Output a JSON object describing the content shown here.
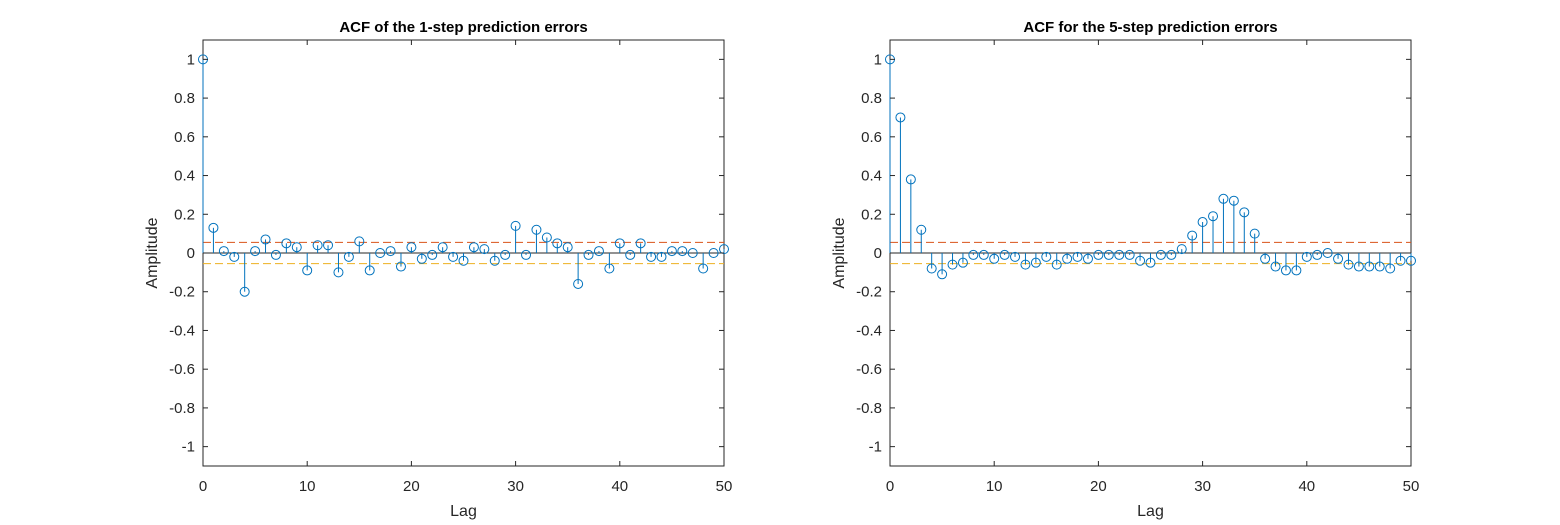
{
  "chart_data": [
    {
      "type": "stem",
      "title": "ACF of the 1-step prediction errors",
      "xlabel": "Lag",
      "ylabel": "Amplitude",
      "xlim": [
        0,
        50
      ],
      "ylim": [
        -1.1,
        1.1
      ],
      "xticks": [
        0,
        10,
        20,
        30,
        40,
        50
      ],
      "yticks": [
        -1,
        -0.8,
        -0.6,
        -0.4,
        -0.2,
        0,
        0.2,
        0.4,
        0.6,
        0.8,
        1
      ],
      "ytick_labels": [
        "-1",
        "-0.8",
        "-0.6",
        "-0.4",
        "-0.2",
        "0",
        "0.2",
        "0.4",
        "0.6",
        "0.8",
        "1"
      ],
      "confidence_bounds": [
        0.055,
        -0.055
      ],
      "grid": false,
      "x": [
        0,
        1,
        2,
        3,
        4,
        5,
        6,
        7,
        8,
        9,
        10,
        11,
        12,
        13,
        14,
        15,
        16,
        17,
        18,
        19,
        20,
        21,
        22,
        23,
        24,
        25,
        26,
        27,
        28,
        29,
        30,
        31,
        32,
        33,
        34,
        35,
        36,
        37,
        38,
        39,
        40,
        41,
        42,
        43,
        44,
        45,
        46,
        47,
        48,
        49,
        50
      ],
      "values": [
        1.0,
        0.13,
        0.01,
        -0.02,
        -0.2,
        0.01,
        0.07,
        -0.01,
        0.05,
        0.03,
        -0.09,
        0.04,
        0.04,
        -0.1,
        -0.02,
        0.06,
        -0.09,
        0.0,
        0.01,
        -0.07,
        0.03,
        -0.03,
        -0.01,
        0.03,
        -0.02,
        -0.04,
        0.03,
        0.02,
        -0.04,
        -0.01,
        0.14,
        -0.01,
        0.12,
        0.08,
        0.05,
        0.03,
        -0.16,
        -0.01,
        0.01,
        -0.08,
        0.05,
        -0.01,
        0.05,
        -0.02,
        -0.02,
        0.01,
        0.01,
        0.0,
        -0.08,
        0.0,
        0.02
      ]
    },
    {
      "type": "stem",
      "title": "ACF for the 5-step prediction errors",
      "xlabel": "Lag",
      "ylabel": "Amplitude",
      "xlim": [
        0,
        50
      ],
      "ylim": [
        -1.1,
        1.1
      ],
      "xticks": [
        0,
        10,
        20,
        30,
        40,
        50
      ],
      "yticks": [
        -1,
        -0.8,
        -0.6,
        -0.4,
        -0.2,
        0,
        0.2,
        0.4,
        0.6,
        0.8,
        1
      ],
      "ytick_labels": [
        "-1",
        "-0.8",
        "-0.6",
        "-0.4",
        "-0.2",
        "0",
        "0.2",
        "0.4",
        "0.6",
        "0.8",
        "1"
      ],
      "confidence_bounds": [
        0.055,
        -0.055
      ],
      "grid": false,
      "x": [
        0,
        1,
        2,
        3,
        4,
        5,
        6,
        7,
        8,
        9,
        10,
        11,
        12,
        13,
        14,
        15,
        16,
        17,
        18,
        19,
        20,
        21,
        22,
        23,
        24,
        25,
        26,
        27,
        28,
        29,
        30,
        31,
        32,
        33,
        34,
        35,
        36,
        37,
        38,
        39,
        40,
        41,
        42,
        43,
        44,
        45,
        46,
        47,
        48,
        49,
        50
      ],
      "values": [
        1.0,
        0.7,
        0.38,
        0.12,
        -0.08,
        -0.11,
        -0.06,
        -0.05,
        -0.01,
        -0.01,
        -0.03,
        -0.01,
        -0.02,
        -0.06,
        -0.05,
        -0.02,
        -0.06,
        -0.03,
        -0.02,
        -0.03,
        -0.01,
        -0.01,
        -0.01,
        -0.01,
        -0.04,
        -0.05,
        -0.01,
        -0.01,
        0.02,
        0.09,
        0.16,
        0.19,
        0.28,
        0.27,
        0.21,
        0.1,
        -0.03,
        -0.07,
        -0.09,
        -0.09,
        -0.02,
        -0.01,
        0.0,
        -0.03,
        -0.06,
        -0.07,
        -0.07,
        -0.07,
        -0.08,
        -0.04,
        -0.04
      ]
    }
  ],
  "colors": {
    "stem": "#0072BD",
    "upper_bound": "#D95319",
    "lower_bound": "#EDB120",
    "axes": "#262626"
  }
}
